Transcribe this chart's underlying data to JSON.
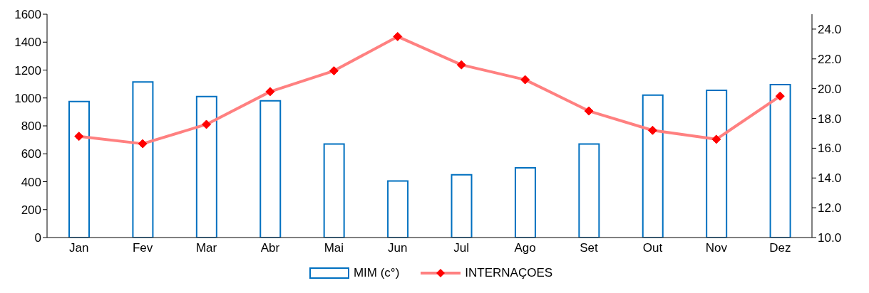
{
  "chart_data": {
    "type": "bar",
    "categories": [
      "Jan",
      "Fev",
      "Mar",
      "Abr",
      "Mai",
      "Jun",
      "Jul",
      "Ago",
      "Set",
      "Out",
      "Nov",
      "Dez"
    ],
    "series": [
      {
        "name": "MIM (c°)",
        "color": "#0070c0",
        "values": [
          975,
          1115,
          1010,
          980,
          670,
          405,
          450,
          500,
          670,
          1020,
          1055,
          1095
        ]
      },
      {
        "name": "INTERNAÇOES",
        "type": "line",
        "axis": "y2",
        "color": "#ff8080",
        "values": [
          16.8,
          16.3,
          17.6,
          19.8,
          21.2,
          23.5,
          21.6,
          20.6,
          18.5,
          17.2,
          16.6,
          19.5
        ]
      }
    ],
    "ylim": [
      0,
      1600
    ],
    "yticks": [
      0,
      200,
      400,
      600,
      800,
      1000,
      1200,
      1400,
      1600
    ],
    "y2lim": [
      10,
      25
    ],
    "y2ticks": [
      {
        "value": 10,
        "label": "10.0"
      },
      {
        "value": 12,
        "label": "12.0"
      },
      {
        "value": 14,
        "label": "14.0"
      },
      {
        "value": 16,
        "label": "16.0"
      },
      {
        "value": 18,
        "label": "18.0"
      },
      {
        "value": 20,
        "label": "20.0"
      },
      {
        "value": 22,
        "label": "22.0"
      },
      {
        "value": 24,
        "label": "24.0"
      }
    ],
    "grid": false,
    "legend": "bottom",
    "marker": "diamond",
    "line_style": "solid"
  }
}
